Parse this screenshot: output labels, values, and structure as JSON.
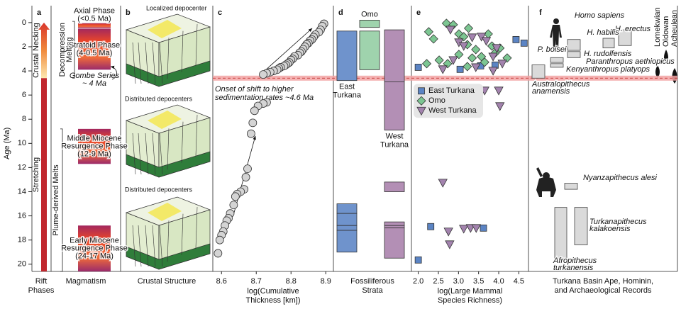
{
  "chart_data": [
    {
      "type": "phases",
      "letter": "a",
      "y_label": "Age (Ma)",
      "ylim": [
        -1.4,
        20.6
      ],
      "yticks": [
        0,
        2,
        4,
        6,
        8,
        10,
        12,
        14,
        16,
        18,
        20
      ],
      "rift_phases": [
        {
          "label": "Crustal Necking",
          "ages": [
            0,
            4.6
          ]
        },
        {
          "label": "Stretching",
          "ages": [
            4.6,
            20.6
          ]
        }
      ],
      "magma_regimes": [
        {
          "label": [
            "Decompression",
            "Melting"
          ],
          "ages": [
            -0.1,
            4.6
          ]
        },
        {
          "label": [
            "Plume-derived Melts"
          ],
          "ages": [
            8.8,
            20.6
          ]
        }
      ],
      "magma_phases": [
        {
          "label": [
            "Axial Phase",
            "(<0.5 Ma)"
          ],
          "ages": [
            0.05,
            0.45
          ]
        },
        {
          "label": [
            "Stratoid Phase",
            "(4-0.5 Ma)"
          ],
          "ages": [
            0.5,
            3.9
          ]
        },
        {
          "label": [
            "Middle Miocene",
            "Resurgence Phase",
            "(12-9 Ma)"
          ],
          "ages": [
            8.8,
            11.7
          ]
        },
        {
          "label": [
            "Early Miocene",
            "Resurgence Phase",
            "(24-17 Ma)"
          ],
          "ages": [
            16.8,
            20.6
          ]
        }
      ],
      "annotation": [
        "Gombe Series",
        "~ 4 Ma"
      ],
      "x_labels": [
        [
          "Rift",
          "Phases"
        ],
        [
          "Magmatism"
        ]
      ]
    },
    {
      "type": "diagram",
      "letter": "b",
      "annotations": [
        "Localized depocenter",
        "Distributed depocenters",
        "Distributed depocenters"
      ],
      "x_label": [
        "Crustal Structure"
      ]
    },
    {
      "type": "scatter",
      "letter": "c",
      "xlim": [
        8.575,
        8.922
      ],
      "xticks": [
        8.6,
        8.7,
        8.8,
        8.9
      ],
      "x_label": [
        "log(Cumulative",
        "Thickness [km])"
      ],
      "color": "#d4d4d4",
      "x": [
        8.895,
        8.89,
        8.885,
        8.88,
        8.87,
        8.865,
        8.86,
        8.855,
        8.85,
        8.845,
        8.84,
        8.835,
        8.83,
        8.825,
        8.82,
        8.81,
        8.805,
        8.8,
        8.795,
        8.79,
        8.785,
        8.78,
        8.77,
        8.765,
        8.76,
        8.75,
        8.74,
        8.73,
        8.72,
        8.73,
        8.72,
        8.705,
        8.695,
        8.69,
        8.685,
        8.675,
        8.67,
        8.665,
        8.655,
        8.645,
        8.64,
        8.635,
        8.625,
        8.62,
        8.615,
        8.61,
        8.605,
        8.6,
        8.595,
        8.59
      ],
      "y": [
        0.1,
        0.3,
        0.6,
        0.8,
        1.0,
        1.2,
        1.4,
        1.5,
        1.7,
        1.8,
        2.0,
        2.2,
        2.4,
        2.5,
        2.7,
        2.8,
        3.0,
        3.1,
        3.3,
        3.4,
        3.5,
        3.6,
        3.7,
        3.8,
        3.9,
        4.0,
        4.1,
        4.2,
        4.3,
        6.6,
        6.7,
        6.9,
        7.3,
        8.3,
        9.2,
        12.1,
        12.8,
        13.8,
        14.0,
        14.2,
        14.4,
        15.1,
        15.8,
        16.2,
        16.4,
        16.8,
        17.3,
        17.6,
        18.0,
        19.1
      ],
      "onset": {
        "label": [
          "Onset of shift to higher",
          "sedimentation rates ~4.6 Ma"
        ],
        "age": 4.6
      }
    },
    {
      "type": "strata",
      "letter": "d",
      "x_label": [
        "Fossiliferous",
        "Strata"
      ],
      "series": [
        {
          "name": [
            "East",
            "Turkana"
          ],
          "color": "#6f93cc",
          "intervals": [
            [
              0.7,
              4.8
            ],
            [
              15.0,
              15.8
            ],
            [
              15.8,
              16.8
            ],
            [
              16.8,
              17.2
            ],
            [
              17.2,
              19.0
            ]
          ]
        },
        {
          "name": [
            "Omo"
          ],
          "color": "#9fd3ad",
          "intervals": [
            [
              -0.2,
              0.4
            ],
            [
              0.7,
              3.9
            ]
          ]
        },
        {
          "name": [
            "West",
            "Turkana"
          ],
          "color": "#b38fb5",
          "intervals": [
            [
              0.6,
              4.9
            ],
            [
              4.9,
              8.9
            ],
            [
              13.2,
              14.0
            ],
            [
              16.5,
              16.8
            ],
            [
              16.8,
              17.0
            ],
            [
              17.0,
              19.5
            ]
          ]
        }
      ]
    },
    {
      "type": "scatter",
      "letter": "e",
      "xlim": [
        1.83,
        4.74
      ],
      "xticks": [
        {
          "value": 2,
          "label": "2.0"
        },
        2.5,
        {
          "value": 3,
          "label": "3.0"
        },
        3.5,
        {
          "value": 4,
          "label": "4.0"
        },
        4.5
      ],
      "x_label": [
        "log(Large Mammal",
        "Species Richness)"
      ],
      "legend": "upper left",
      "series": [
        {
          "name": "East Turkana",
          "color": "#5b84c4",
          "marker": "square",
          "x": [
            4.43,
            4.63,
            2.0,
            3.04,
            3.55,
            3.91,
            2.31,
            3.62,
            2.0
          ],
          "y": [
            1.41,
            1.7,
            3.7,
            3.87,
            3.58,
            3.52,
            16.89,
            17.01,
            19.65
          ]
        },
        {
          "name": "Omo",
          "color": "#7cc692",
          "marker": "diamond",
          "x": [
            2.26,
            2.38,
            2.7,
            2.87,
            3.01,
            3.13,
            3.22,
            3.25,
            3.34,
            3.43,
            3.57,
            3.65,
            3.74,
            3.83,
            3.91,
            4.03,
            4.21,
            2.52,
            2.73,
            2.21,
            3.01,
            3.22
          ],
          "y": [
            0.76,
            1.35,
            0.06,
            0.18,
            0.94,
            1.17,
            1.82,
            0.47,
            2.93,
            2.23,
            2.82,
            3.28,
            0.94,
            1.94,
            2.52,
            2.11,
            2.93,
            3.11,
            3.4,
            3.4,
            2.64,
            3.64
          ]
        },
        {
          "name": "West Turkana",
          "color": "#a383ae",
          "marker": "triangle-down",
          "x": [
            2.8,
            3.01,
            3.13,
            3.34,
            3.57,
            3.69,
            3.86,
            3.95,
            4.09,
            3.43,
            3.86,
            2.87,
            2.61,
            4.0,
            4.03,
            3.65,
            2.61,
            2.75,
            3.13,
            3.3,
            3.44,
            2.78
          ],
          "y": [
            0.59,
            1.64,
            1.94,
            1.23,
            1.17,
            1.52,
            2.82,
            2.11,
            3.4,
            3.7,
            3.99,
            3.11,
            3.87,
            5.63,
            6.92,
            5.63,
            13.26,
            17.3,
            17.07,
            17.01,
            17.01,
            18.36
          ]
        }
      ]
    },
    {
      "type": "records",
      "letter": "f",
      "x_label": [
        "Turkana Basin Ape, Hominin,",
        "and Archaeological Records"
      ],
      "taxa": [
        {
          "label": [
            "Homo sapiens"
          ]
        },
        {
          "label": [
            "H. erectus"
          ],
          "ages": [
            0.6,
            1.9
          ]
        },
        {
          "label": [
            "H. habilis"
          ],
          "ages": [
            1.3,
            2.1
          ]
        },
        {
          "label": [
            "P. boisei"
          ],
          "ages": [
            1.4,
            2.3
          ]
        },
        {
          "label": [
            "H. rudolfensis"
          ],
          "ages": [
            2.4,
            2.9
          ]
        },
        {
          "label": [
            "Paranthropus aethiopicus"
          ],
          "ages": [
            2.9,
            3.3
          ]
        },
        {
          "label": [
            "Kenyanthropus platyops"
          ],
          "ages": [
            3.4,
            3.7
          ]
        },
        {
          "label": [
            "Australopithecus",
            "anamensis"
          ],
          "ages": [
            3.5,
            4.6
          ]
        },
        {
          "label": [
            "Nyanzapithecus alesi"
          ],
          "ages": [
            13.3,
            13.8
          ]
        },
        {
          "label": [
            "Turkanapithecus",
            "kalakoensis"
          ],
          "ages": [
            15.3,
            18.4
          ]
        },
        {
          "label": [
            "Afropithecus",
            "turkanensis"
          ],
          "ages": [
            15.3,
            19.5
          ]
        }
      ],
      "tools": [
        "Lomekwian",
        "Oldowan",
        "Acheulean"
      ]
    }
  ]
}
